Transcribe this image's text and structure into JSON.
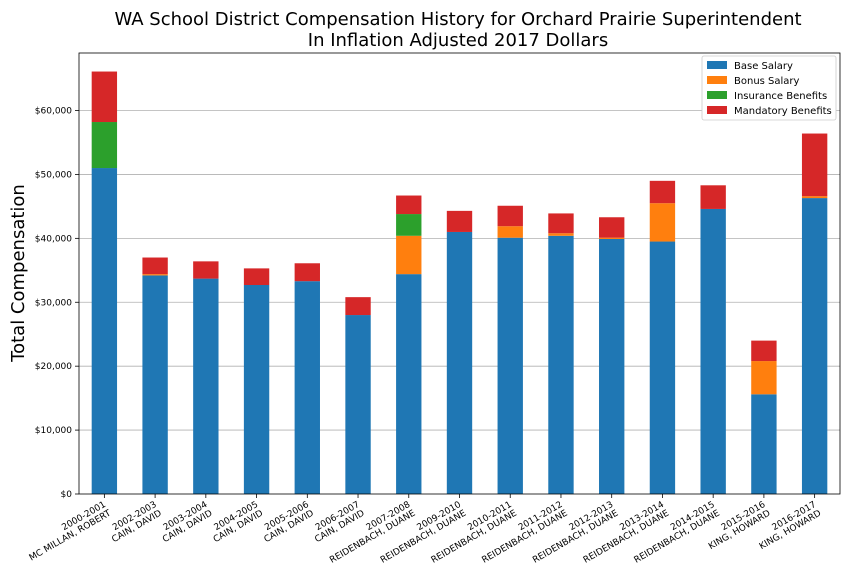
{
  "chart_data": {
    "type": "bar",
    "stacked": true,
    "title": "WA School District Compensation History for Orchard Prairie Superintendent",
    "subtitle": "In Inflation Adjusted 2017 Dollars",
    "ylabel": "Total Compensation",
    "ylim": [
      0,
      69000
    ],
    "yticks": [
      0,
      10000,
      20000,
      30000,
      40000,
      50000,
      60000
    ],
    "ytick_labels": [
      "$0",
      "$10,000",
      "$20,000",
      "$30,000",
      "$40,000",
      "$50,000",
      "$60,000"
    ],
    "grid": "horizontal",
    "legend_position": "top-right",
    "categories": [
      {
        "year": "2000-2001",
        "name": "MC MILLAN, ROBERT"
      },
      {
        "year": "2002-2003",
        "name": "CAIN, DAVID"
      },
      {
        "year": "2003-2004",
        "name": "CAIN, DAVID"
      },
      {
        "year": "2004-2005",
        "name": "CAIN, DAVID"
      },
      {
        "year": "2005-2006",
        "name": "CAIN, DAVID"
      },
      {
        "year": "2006-2007",
        "name": "CAIN, DAVID"
      },
      {
        "year": "2007-2008",
        "name": "REIDENBACH, DUANE"
      },
      {
        "year": "2009-2010",
        "name": "REIDENBACH, DUANE"
      },
      {
        "year": "2010-2011",
        "name": "REIDENBACH, DUANE"
      },
      {
        "year": "2011-2012",
        "name": "REIDENBACH, DUANE"
      },
      {
        "year": "2012-2013",
        "name": "REIDENBACH, DUANE"
      },
      {
        "year": "2013-2014",
        "name": "REIDENBACH, DUANE"
      },
      {
        "year": "2014-2015",
        "name": "REIDENBACH, DUANE"
      },
      {
        "year": "2015-2016",
        "name": "KING, HOWARD"
      },
      {
        "year": "2016-2017",
        "name": "KING, HOWARD"
      }
    ],
    "series": [
      {
        "name": "Base Salary",
        "color": "#1f77b4",
        "values": [
          51000,
          34200,
          33700,
          32700,
          33300,
          28000,
          34400,
          41000,
          40100,
          40400,
          39900,
          39500,
          44600,
          15600,
          46300
        ]
      },
      {
        "name": "Bonus Salary",
        "color": "#ff7f0e",
        "values": [
          0,
          200,
          0,
          0,
          0,
          0,
          6000,
          0,
          1800,
          400,
          200,
          6000,
          0,
          5200,
          300
        ]
      },
      {
        "name": "Insurance Benefits",
        "color": "#2ca02c",
        "values": [
          7200,
          0,
          0,
          0,
          0,
          0,
          3400,
          0,
          0,
          0,
          0,
          0,
          0,
          0,
          0
        ]
      },
      {
        "name": "Mandatory Benefits",
        "color": "#d62728",
        "values": [
          7900,
          2600,
          2700,
          2600,
          2800,
          2800,
          2900,
          3300,
          3200,
          3100,
          3200,
          3500,
          3700,
          3200,
          9800
        ]
      }
    ]
  }
}
